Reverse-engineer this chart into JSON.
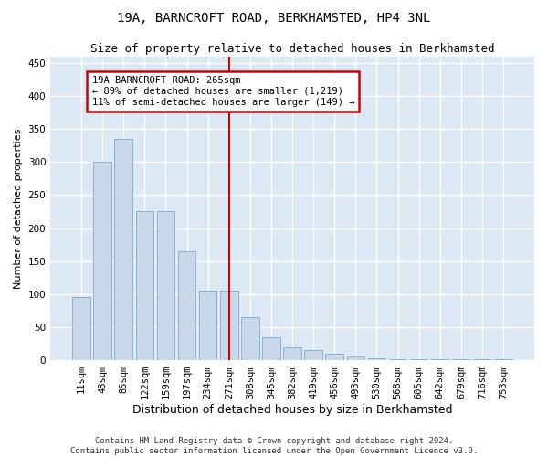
{
  "title1": "19A, BARNCROFT ROAD, BERKHAMSTED, HP4 3NL",
  "title2": "Size of property relative to detached houses in Berkhamsted",
  "xlabel": "Distribution of detached houses by size in Berkhamsted",
  "ylabel": "Number of detached properties",
  "footnote": "Contains HM Land Registry data © Crown copyright and database right 2024.\nContains public sector information licensed under the Open Government Licence v3.0.",
  "bar_labels": [
    "11sqm",
    "48sqm",
    "85sqm",
    "122sqm",
    "159sqm",
    "197sqm",
    "234sqm",
    "271sqm",
    "308sqm",
    "345sqm",
    "382sqm",
    "419sqm",
    "456sqm",
    "493sqm",
    "530sqm",
    "568sqm",
    "605sqm",
    "642sqm",
    "679sqm",
    "716sqm",
    "753sqm"
  ],
  "bar_values": [
    95,
    300,
    335,
    225,
    225,
    165,
    105,
    105,
    65,
    35,
    20,
    15,
    10,
    5,
    3,
    2,
    1,
    1,
    1,
    1,
    1
  ],
  "bar_color": "#c8d8ea",
  "bar_edge_color": "#7aabcc",
  "vline_color": "#cc0000",
  "vline_x": 7,
  "annotation_line1": "19A BARNCROFT ROAD: 265sqm",
  "annotation_line2": "← 89% of detached houses are smaller (1,219)",
  "annotation_line3": "11% of semi-detached houses are larger (149) →",
  "annotation_box_color": "#cc0000",
  "ylim": [
    0,
    460
  ],
  "yticks": [
    0,
    50,
    100,
    150,
    200,
    250,
    300,
    350,
    400,
    450
  ],
  "background_color": "#dde8f5",
  "grid_color": "#ffffff",
  "title1_fontsize": 10,
  "title2_fontsize": 9,
  "xlabel_fontsize": 9,
  "ylabel_fontsize": 8,
  "tick_fontsize": 7.5,
  "footnote_fontsize": 6.5
}
